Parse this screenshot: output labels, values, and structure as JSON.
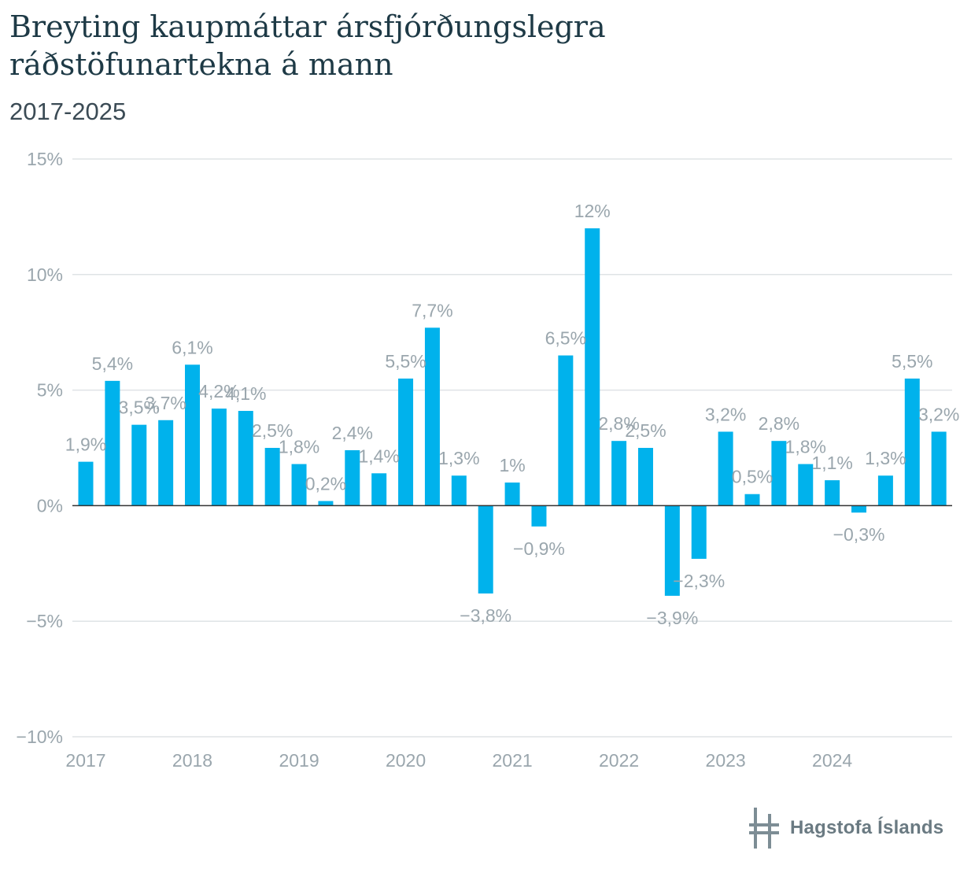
{
  "title": "Breyting kaupmáttar ársfjórðungslegra ráðstöfunartekna á mann",
  "subtitle": "2017-2025",
  "brand": {
    "name": "Hagstofa Íslands",
    "logo_icon": "hagstofa-logo-icon"
  },
  "colors": {
    "bar": "#00b2ec",
    "grid": "#dfe3e6",
    "zero_line": "#333333",
    "text": "#9aa6ad"
  },
  "chart_data": {
    "type": "bar",
    "title": "Breyting kaupmáttar ársfjórðungslegra ráðstöfunartekna á mann",
    "subtitle": "2017-2025",
    "ylim": [
      -10,
      15
    ],
    "y_ticks": [
      15,
      10,
      5,
      0,
      -5,
      -10
    ],
    "y_tick_labels": [
      "15%",
      "10%",
      "5%",
      "0%",
      "−5%",
      "−10%"
    ],
    "x_tick_labels": [
      "2017",
      "2018",
      "2019",
      "2020",
      "2021",
      "2022",
      "2023",
      "2024"
    ],
    "x_tick_positions": [
      0,
      4,
      8,
      12,
      16,
      20,
      24,
      28
    ],
    "grid": true,
    "values": [
      1.9,
      5.4,
      3.5,
      3.7,
      6.1,
      4.2,
      4.1,
      2.5,
      1.8,
      0.2,
      2.4,
      1.4,
      5.5,
      7.7,
      1.3,
      -3.8,
      1.0,
      -0.9,
      6.5,
      12.0,
      2.8,
      2.5,
      -3.9,
      -2.3,
      3.2,
      0.5,
      2.8,
      1.8,
      1.1,
      -0.3,
      1.3,
      5.5,
      3.2
    ],
    "labels": [
      "1,9%",
      "5,4%",
      "3,5%",
      "3,7%",
      "6,1%",
      "4,2%",
      "4,1%",
      "2,5%",
      "1,8%",
      "0,2%",
      "2,4%",
      "1,4%",
      "5,5%",
      "7,7%",
      "1,3%",
      "−3,8%",
      "1%",
      "−0,9%",
      "6,5%",
      "12%",
      "2,8%",
      "2,5%",
      "−3,9%",
      "−2,3%",
      "3,2%",
      "0,5%",
      "2,8%",
      "1,8%",
      "1,1%",
      "−0,3%",
      "1,3%",
      "5,5%",
      "3,2%"
    ]
  }
}
